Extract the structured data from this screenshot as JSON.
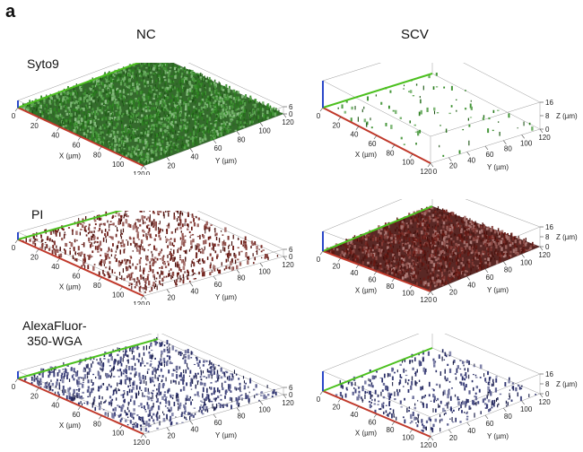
{
  "figure": {
    "panel_label": "a",
    "columns": [
      "NC",
      "SCV"
    ],
    "rows": [
      "Syto9",
      "PI",
      "AlexaFluor-\n350-WGA"
    ],
    "axes": {
      "x_label": "X (µm)",
      "y_label": "Y (µm)",
      "z_label": "Z (µm)",
      "x_ticks": [
        "0",
        "20",
        "40",
        "60",
        "80",
        "100",
        "120"
      ],
      "y_ticks": [
        "0",
        "20",
        "40",
        "60",
        "80",
        "100",
        "120"
      ],
      "z_ticks_nc": [
        "6",
        "0"
      ],
      "z_ticks_scv": [
        "16",
        "8",
        "0"
      ]
    },
    "stain_colors": {
      "syto9": "#2f8a22",
      "pi": "#6e1a14",
      "wga": "#2a2f6e"
    }
  }
}
